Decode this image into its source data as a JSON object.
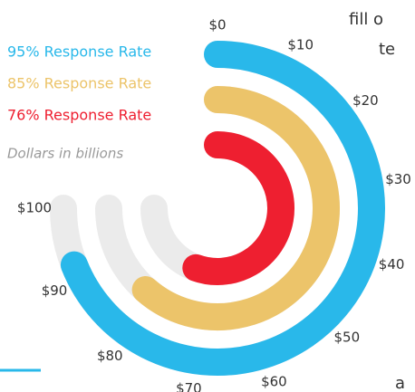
{
  "chart_data": {
    "type": "radial_bar",
    "series": [
      {
        "name": "95% Response Rate",
        "color": "#29b8ea",
        "values": [
          92
        ]
      },
      {
        "name": "85% Response Rate",
        "color": "#ecc46a",
        "values": [
          82
        ]
      },
      {
        "name": "76% Response Rate",
        "color": "#ee1f30",
        "values": [
          74
        ]
      }
    ],
    "note": "Dollars in billions",
    "track_color": "#ebebeb",
    "ylim": [
      0,
      100
    ],
    "yticks": [
      {
        "value": 0,
        "label": "$0"
      },
      {
        "value": 10,
        "label": "$10"
      },
      {
        "value": 20,
        "label": "$20"
      },
      {
        "value": 30,
        "label": "$30"
      },
      {
        "value": 40,
        "label": "$40"
      },
      {
        "value": 50,
        "label": "$50"
      },
      {
        "value": 60,
        "label": "$60"
      },
      {
        "value": 70,
        "label": "$70"
      },
      {
        "value": 80,
        "label": "$80"
      },
      {
        "value": 90,
        "label": "$90"
      },
      {
        "value": 100,
        "label": "$100"
      }
    ]
  },
  "fragments": [
    "fill o",
    "te",
    "a"
  ]
}
